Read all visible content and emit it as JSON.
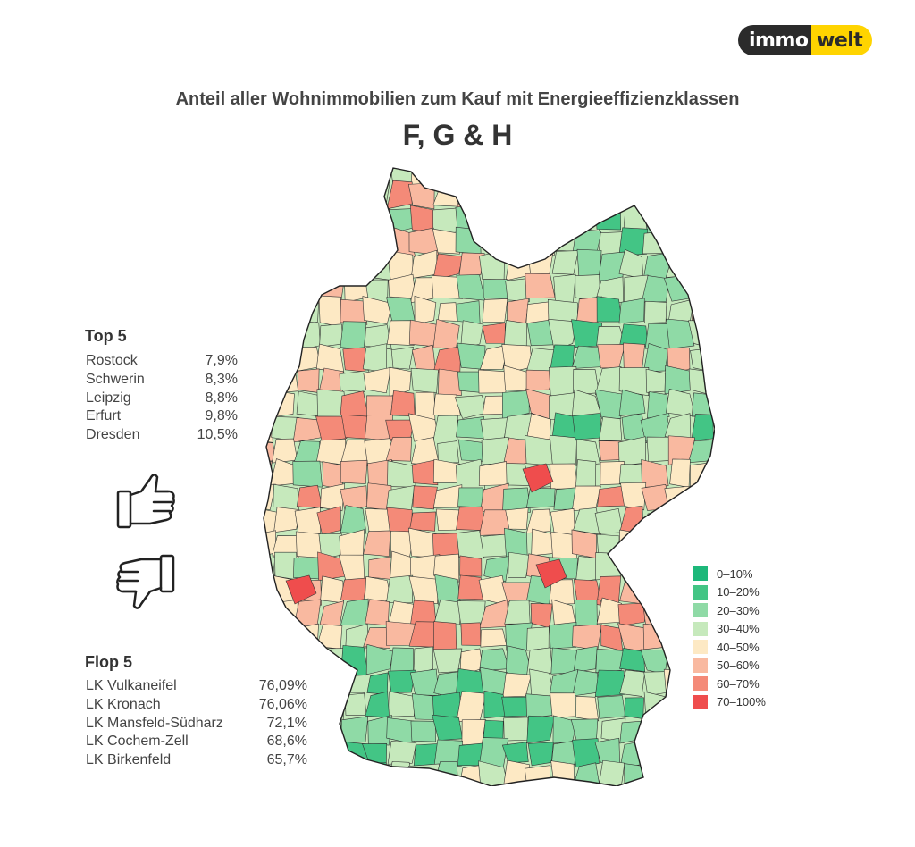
{
  "logo": {
    "part1": "immo",
    "part2": "welt",
    "dark": "#2b2b2b",
    "yellow": "#ffd400"
  },
  "title": "Anteil aller Wohnimmobilien zum Kauf mit Energieeffizienzklassen",
  "subtitle": "F, G & H",
  "top5": {
    "heading": "Top 5",
    "rows": [
      {
        "name": "Rostock",
        "value": "7,9%"
      },
      {
        "name": "Schwerin",
        "value": "8,3%"
      },
      {
        "name": "Leipzig",
        "value": "8,8%"
      },
      {
        "name": "Erfurt",
        "value": "9,8%"
      },
      {
        "name": "Dresden",
        "value": "10,5%"
      }
    ]
  },
  "flop5": {
    "heading": "Flop 5",
    "rows": [
      {
        "name": "LK Vulkaneifel",
        "value": "76,09%"
      },
      {
        "name": "LK Kronach",
        "value": "76,06%"
      },
      {
        "name": "LK Mansfeld-Südharz",
        "value": "72,1%"
      },
      {
        "name": "LK Cochem-Zell",
        "value": "68,6%"
      },
      {
        "name": "LK Birkenfeld",
        "value": "65,7%"
      }
    ]
  },
  "legend": [
    {
      "label": "0–10%",
      "color": "#1db87a"
    },
    {
      "label": "10–20%",
      "color": "#43c585"
    },
    {
      "label": "20–30%",
      "color": "#8fdaa6"
    },
    {
      "label": "30–40%",
      "color": "#c6e9bc"
    },
    {
      "label": "40–50%",
      "color": "#fde9c4"
    },
    {
      "label": "50–60%",
      "color": "#f9b9a0"
    },
    {
      "label": "60–70%",
      "color": "#f48a78"
    },
    {
      "label": "70–100%",
      "color": "#ef4d4d"
    }
  ]
}
